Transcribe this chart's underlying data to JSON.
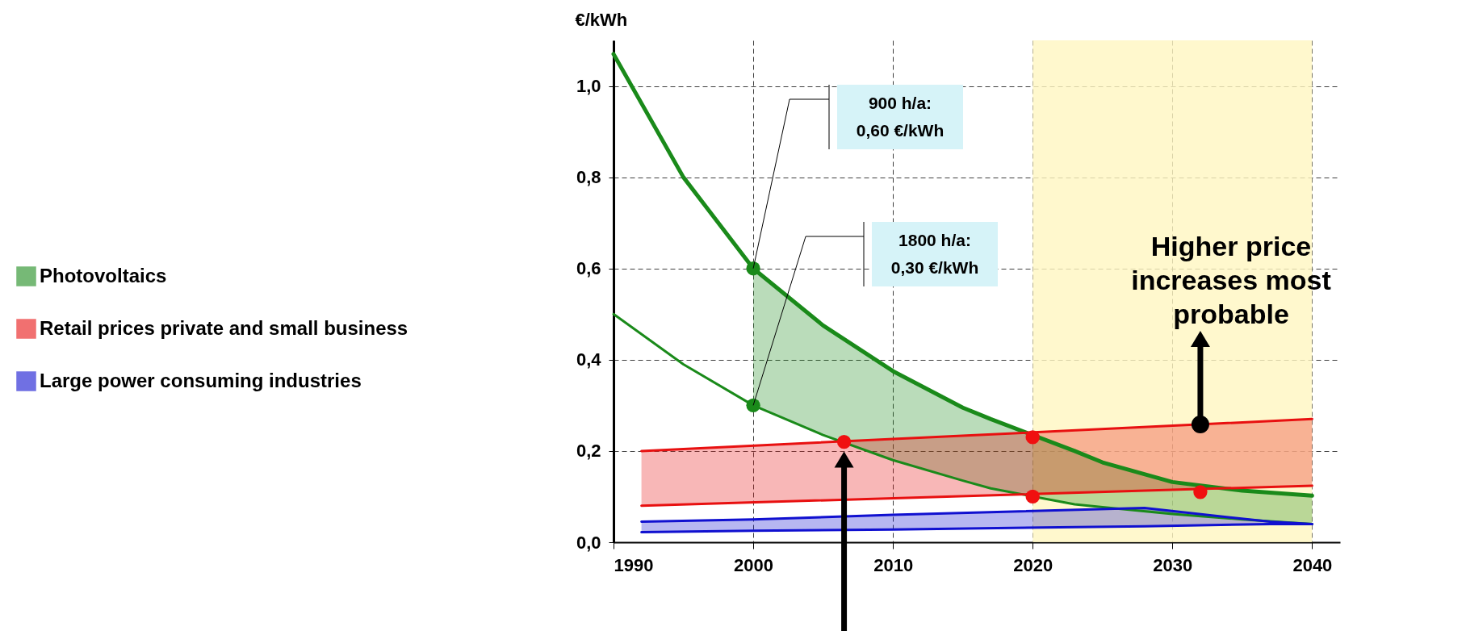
{
  "chart_data": {
    "type": "line",
    "ylabel": "€/kWh",
    "xlim": [
      1990,
      2042
    ],
    "xticks": [
      1990,
      2000,
      2010,
      2020,
      2030,
      2040
    ],
    "ylim": [
      0,
      1.1
    ],
    "yticks": [
      {
        "value": 0,
        "label": "0,0"
      },
      {
        "value": 0.2,
        "label": "0,2"
      },
      {
        "value": 0.4,
        "label": "0,4"
      },
      {
        "value": 0.6,
        "label": "0,6"
      },
      {
        "value": 0.8,
        "label": "0,8"
      },
      {
        "value": 1.0,
        "label": "1,0"
      }
    ],
    "grid": true,
    "legend": "left",
    "bands": [
      {
        "axis": "x",
        "from": 2020,
        "to": 2040,
        "color": "#fff6c0"
      }
    ],
    "series": [
      {
        "name": "Photovoltaics",
        "color": "#1a8a1a",
        "x": [
          1990,
          1995,
          2000,
          2005,
          2010,
          2015,
          2017,
          2023,
          2025,
          2030,
          2035,
          2040
        ],
        "values": [
          1.07,
          0.8,
          0.6,
          0.475,
          0.375,
          0.295,
          0.27,
          0.2,
          0.175,
          0.132,
          0.113,
          0.102
        ],
        "lower": [
          null,
          null,
          0.3,
          0.235,
          0.18,
          0.135,
          0.118,
          0.083,
          0.077,
          0.062,
          0.05,
          0.04
        ],
        "upper": [
          null,
          null,
          0.6,
          0.475,
          0.375,
          0.295,
          0.27,
          0.2,
          0.175,
          0.132,
          0.113,
          0.102
        ]
      },
      {
        "color": "#1a8a1a",
        "x": [
          1990,
          1995,
          2000,
          2005,
          2010,
          2015,
          2017,
          2023,
          2025,
          2030,
          2035,
          2040
        ],
        "values": [
          0.5,
          0.39,
          0.3,
          0.235,
          0.18,
          0.135,
          0.118,
          0.083,
          0.077,
          0.062,
          0.05,
          0.04
        ]
      },
      {
        "name": "Retail prices private and small business",
        "color": "#e81010",
        "x": [
          1992,
          2040
        ],
        "values": [
          0.2,
          0.27
        ],
        "lower": [
          0.08,
          0.124
        ],
        "upper": [
          0.2,
          0.27
        ]
      },
      {
        "color": "#e81010",
        "x": [
          1992,
          2040
        ],
        "values": [
          0.08,
          0.124
        ]
      },
      {
        "name": "Large power consuming industries",
        "color": "#1010d0",
        "x": [
          1992,
          2000,
          2010,
          2028,
          2037,
          2040
        ],
        "values": [
          0.045,
          0.05,
          0.06,
          0.075,
          0.045,
          0.04
        ],
        "lower": [
          0.022,
          0.025,
          0.028,
          0.035,
          0.04,
          0.04
        ],
        "upper": [
          0.045,
          0.05,
          0.06,
          0.075,
          0.045,
          0.04
        ]
      },
      {
        "color": "#1010d0",
        "x": [
          1992,
          2000,
          2010,
          2028,
          2037,
          2040
        ],
        "values": [
          0.022,
          0.025,
          0.028,
          0.035,
          0.04,
          0.04
        ]
      },
      {
        "type": "scatter",
        "color": "#1a8a1a",
        "x": [
          2000,
          2000
        ],
        "values": [
          0.6,
          0.3
        ]
      },
      {
        "type": "scatter",
        "color": "#f01010",
        "x": [
          2006.5,
          2020,
          2020,
          2032
        ],
        "values": [
          0.22,
          0.23,
          0.1,
          0.11
        ]
      }
    ],
    "annotations": [
      "900 h/a:\n0,60 €/kWh",
      "1800 h/a:\n0,30 €/kWh",
      "Higher price\nincreases most\nprobable"
    ]
  }
}
